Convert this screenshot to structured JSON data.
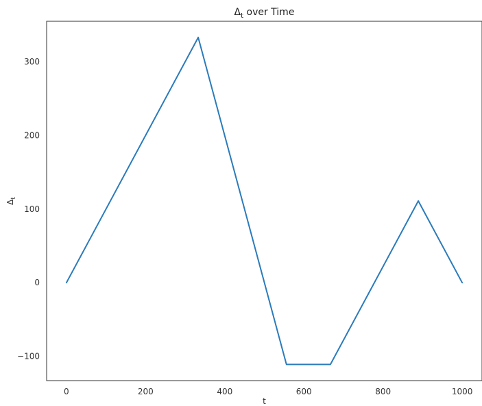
{
  "chart_data": {
    "type": "line",
    "title": "Δ",
    "title_sub": "t",
    "title_rest": " over Time",
    "xlabel": "t",
    "ylabel": "Δ",
    "ylabel_sub": "t",
    "xlim": [
      -50,
      1050
    ],
    "ylim": [
      -133,
      355
    ],
    "xticks": [
      0,
      200,
      400,
      600,
      800,
      1000
    ],
    "xtick_labels": [
      "0",
      "200",
      "400",
      "600",
      "800",
      "1000"
    ],
    "yticks": [
      -100,
      0,
      100,
      200,
      300
    ],
    "ytick_labels": [
      "−100",
      "0",
      "100",
      "200",
      "300"
    ],
    "grid": false,
    "color": "#2b7bba",
    "series": [
      {
        "x": [
          0,
          333,
          556,
          667,
          889,
          1000
        ],
        "y": [
          0,
          333,
          -111,
          -111,
          111,
          0
        ]
      }
    ]
  }
}
